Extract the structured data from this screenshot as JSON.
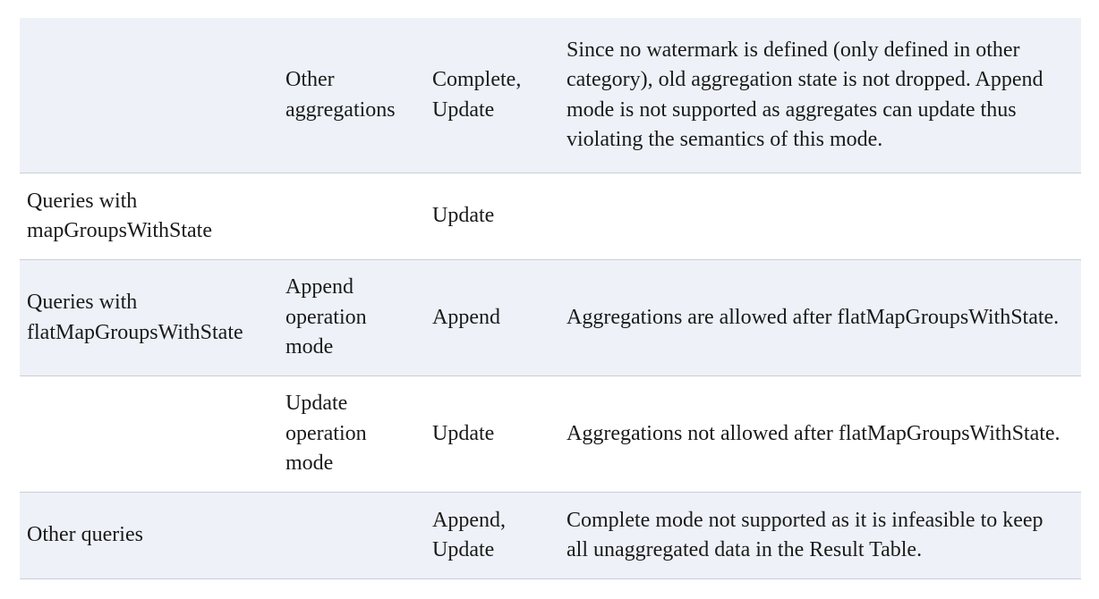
{
  "table": {
    "rows": [
      {
        "query_type": "",
        "sub_type": "Other aggregations",
        "output_modes": "Complete, Update",
        "notes": "Since no watermark is defined (only defined in other category), old aggregation state is not dropped. Append mode is not supported as aggregates can update thus violating the semantics of this mode."
      },
      {
        "query_type": "Queries with mapGroupsWithState",
        "sub_type": "",
        "output_modes": "Update",
        "notes": ""
      },
      {
        "query_type": "Queries with flatMapGroupsWithState",
        "sub_type": "Append operation mode",
        "output_modes": "Append",
        "notes": "Aggregations are allowed after flatMapGroupsWithState."
      },
      {
        "query_type": "",
        "sub_type": "Update operation mode",
        "output_modes": "Update",
        "notes": "Aggregations not allowed after flatMapGroupsWithState."
      },
      {
        "query_type": "Other queries",
        "sub_type": "",
        "output_modes": "Append, Update",
        "notes": "Complete mode not supported as it is infeasible to keep all unaggregated data in the Result Table."
      }
    ]
  }
}
